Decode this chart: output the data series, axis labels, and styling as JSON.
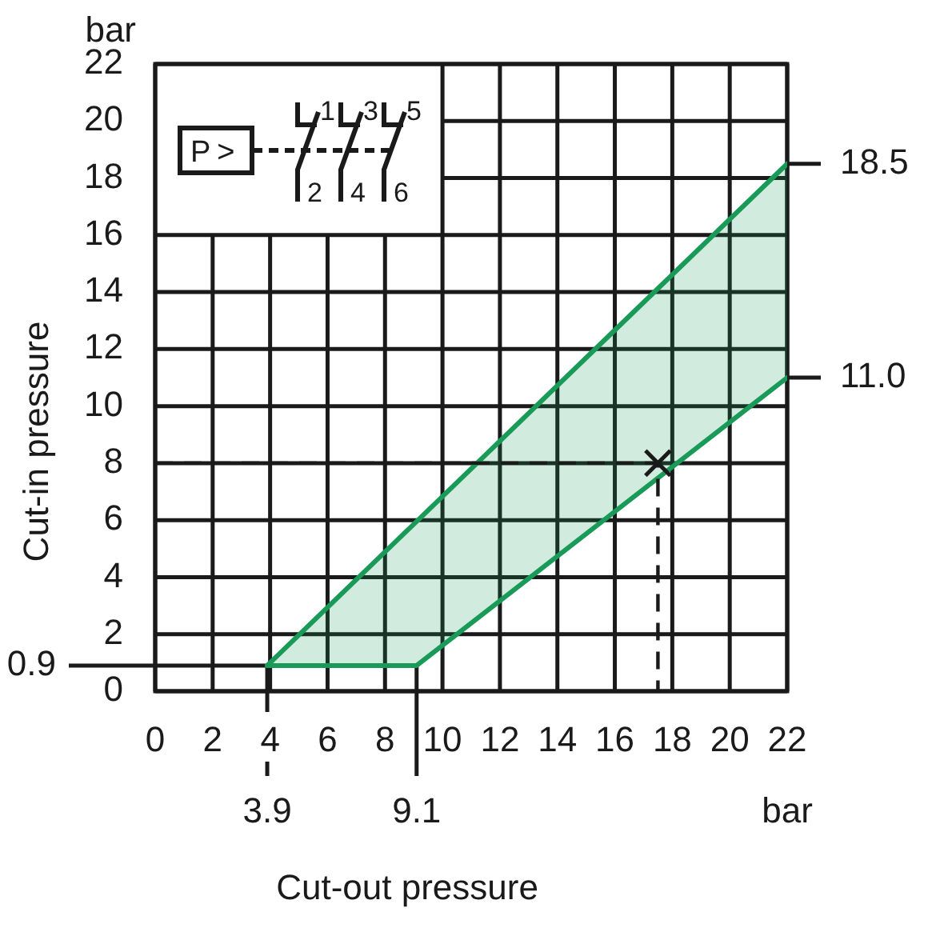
{
  "chart_data": {
    "type": "line",
    "xlabel": "Cut-out pressure",
    "ylabel": "Cut-in pressure",
    "annotations": [
      "bar",
      "bar",
      "P>",
      "1",
      "3",
      "5",
      "2",
      "4",
      "6"
    ],
    "series": [
      {
        "type": "line",
        "color": "#1a9a58",
        "x": [
          3.9,
          22
        ],
        "values": [
          0.9,
          18.5
        ]
      },
      {
        "type": "line",
        "color": "#1a9a58",
        "x": [
          3.9,
          9.1,
          22
        ],
        "values": [
          0.9,
          0.9,
          11.0
        ],
        "lower": [
          0.9,
          0.9,
          11.0
        ],
        "upper": [
          0.9,
          6.0,
          18.5
        ]
      },
      {
        "type": "line",
        "color": "#1a1a1a",
        "line_style": "dashed",
        "marker": "none",
        "x": [
          0,
          17.5,
          17.5
        ],
        "values": [
          8,
          8,
          0
        ]
      },
      {
        "type": "scatter",
        "color": "#1a1a1a",
        "marker": "cross",
        "x": [
          17.5
        ],
        "values": [
          8
        ]
      }
    ],
    "xlim": [
      0,
      22
    ],
    "xticks": [
      0,
      2,
      4,
      6,
      8,
      10,
      12,
      14,
      16,
      18,
      20,
      22
    ],
    "ylim": [
      0,
      22
    ],
    "yticks": [
      0,
      2,
      4,
      6,
      8,
      10,
      12,
      14,
      16,
      18,
      20,
      22
    ],
    "grid": true,
    "ref_lines": [
      {
        "axis": "y",
        "value": 0.9,
        "label": "0.9"
      },
      {
        "axis": "x",
        "value": 3.9,
        "label": "3.9"
      },
      {
        "axis": "x",
        "value": 9.1,
        "label": "9.1"
      },
      {
        "axis": "y",
        "value": 18.5,
        "label": "18.5"
      },
      {
        "axis": "y",
        "value": 11.0,
        "label": "11.0"
      }
    ]
  }
}
